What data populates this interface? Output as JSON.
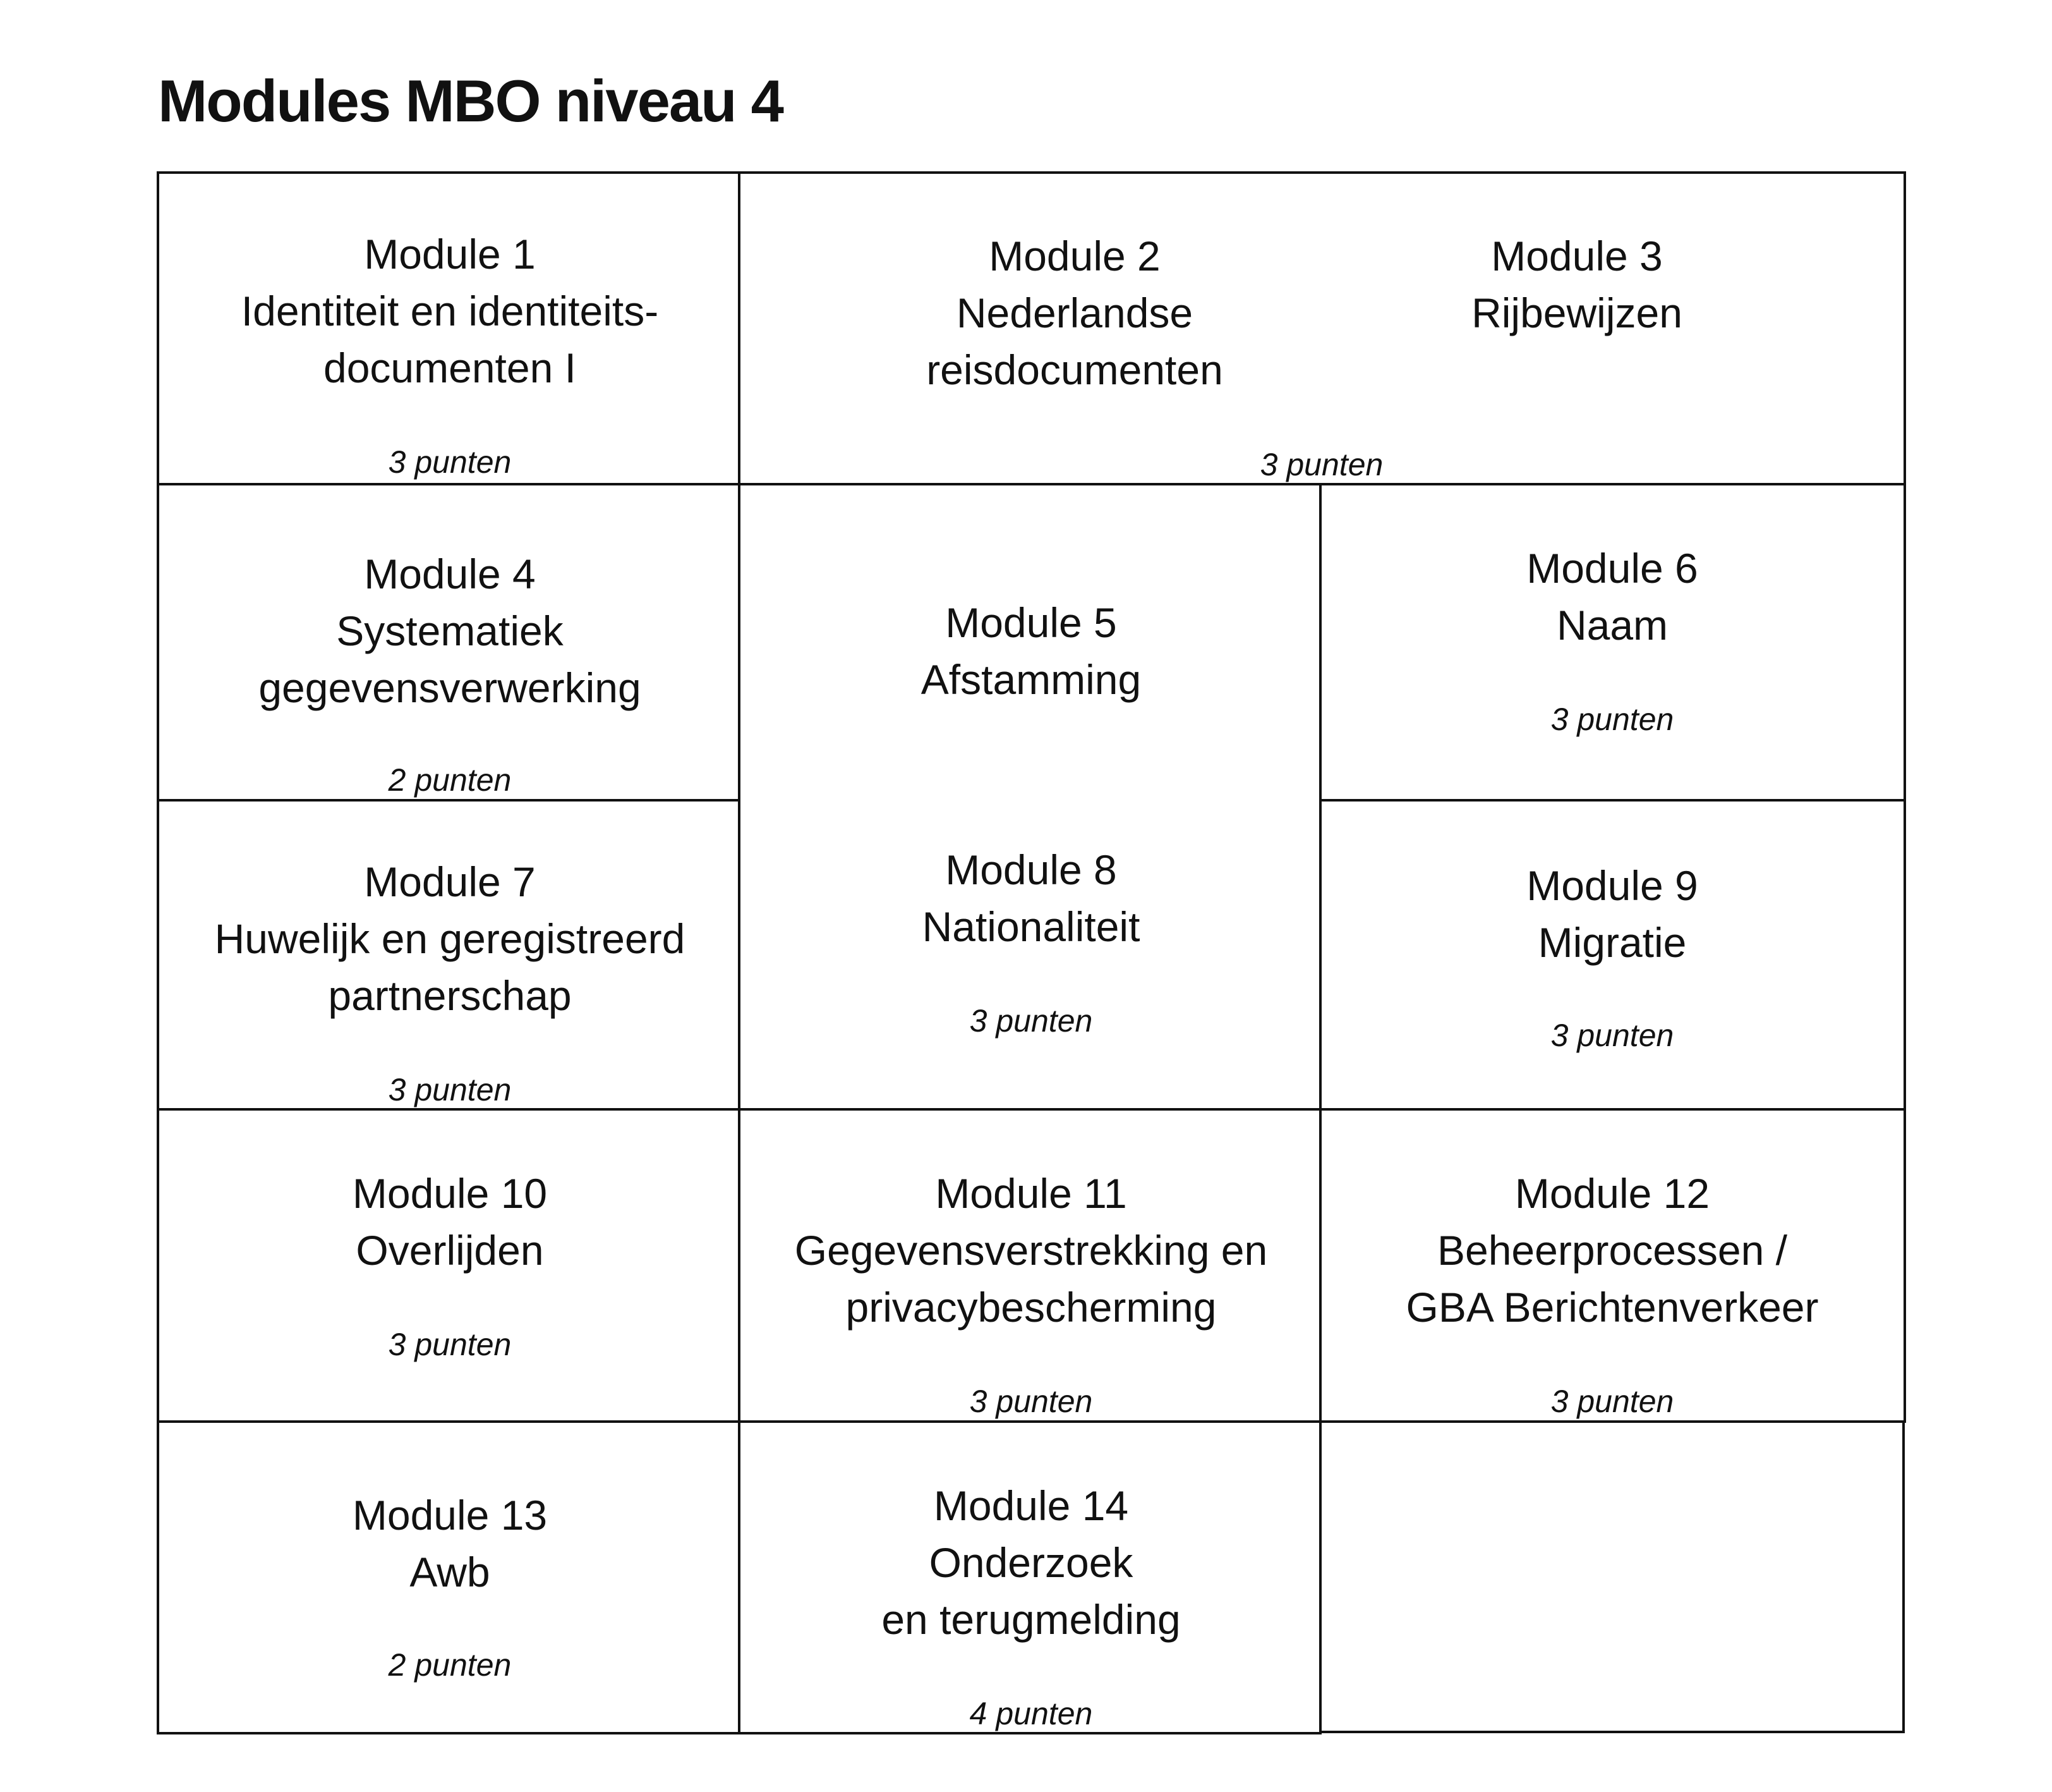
{
  "header": {
    "title": "Modules MBO niveau 4"
  },
  "cells": [
    {
      "modules": [
        {
          "label": "Module 1",
          "lines": [
            "Identiteit en identiteits-",
            "documenten I"
          ]
        }
      ],
      "points": "3 punten"
    },
    {
      "modules": [
        {
          "label": "Module 2",
          "lines": [
            "Nederlandse",
            "reisdocumenten"
          ]
        },
        {
          "label": "Module 3",
          "lines": [
            "Rijbewijzen"
          ]
        }
      ],
      "points": "3 punten"
    },
    {
      "modules": [
        {
          "label": "Module 4",
          "lines": [
            "Systematiek",
            "gegevensverwerking"
          ]
        }
      ],
      "points": "2 punten"
    },
    {
      "modules": [
        {
          "label": "Module 5",
          "lines": [
            "Afstamming"
          ]
        },
        {
          "label": "Module 8",
          "lines": [
            "Nationaliteit"
          ]
        }
      ],
      "points": "3 punten"
    },
    {
      "modules": [
        {
          "label": "Module 6",
          "lines": [
            "Naam"
          ]
        }
      ],
      "points": "3 punten"
    },
    {
      "modules": [
        {
          "label": "Module 7",
          "lines": [
            "Huwelijk en geregistreerd",
            "partnerschap"
          ]
        }
      ],
      "points": "3 punten"
    },
    {
      "modules": [
        {
          "label": "Module 9",
          "lines": [
            "Migratie"
          ]
        }
      ],
      "points": "3 punten"
    },
    {
      "modules": [
        {
          "label": "Module 10",
          "lines": [
            "Overlijden"
          ]
        }
      ],
      "points": "3 punten"
    },
    {
      "modules": [
        {
          "label": "Module 11",
          "lines": [
            "Gegevensverstrekking en",
            "privacybescherming"
          ]
        }
      ],
      "points": "3 punten"
    },
    {
      "modules": [
        {
          "label": "Module 12",
          "lines": [
            "Beheerprocessen /",
            "GBA Berichtenverkeer"
          ]
        }
      ],
      "points": "3 punten"
    },
    {
      "modules": [
        {
          "label": "Module 13",
          "lines": [
            "Awb"
          ]
        }
      ],
      "points": "2 punten"
    },
    {
      "modules": [
        {
          "label": "Module 14",
          "lines": [
            "Onderzoek",
            "en terugmelding"
          ]
        }
      ],
      "points": "4 punten"
    }
  ]
}
